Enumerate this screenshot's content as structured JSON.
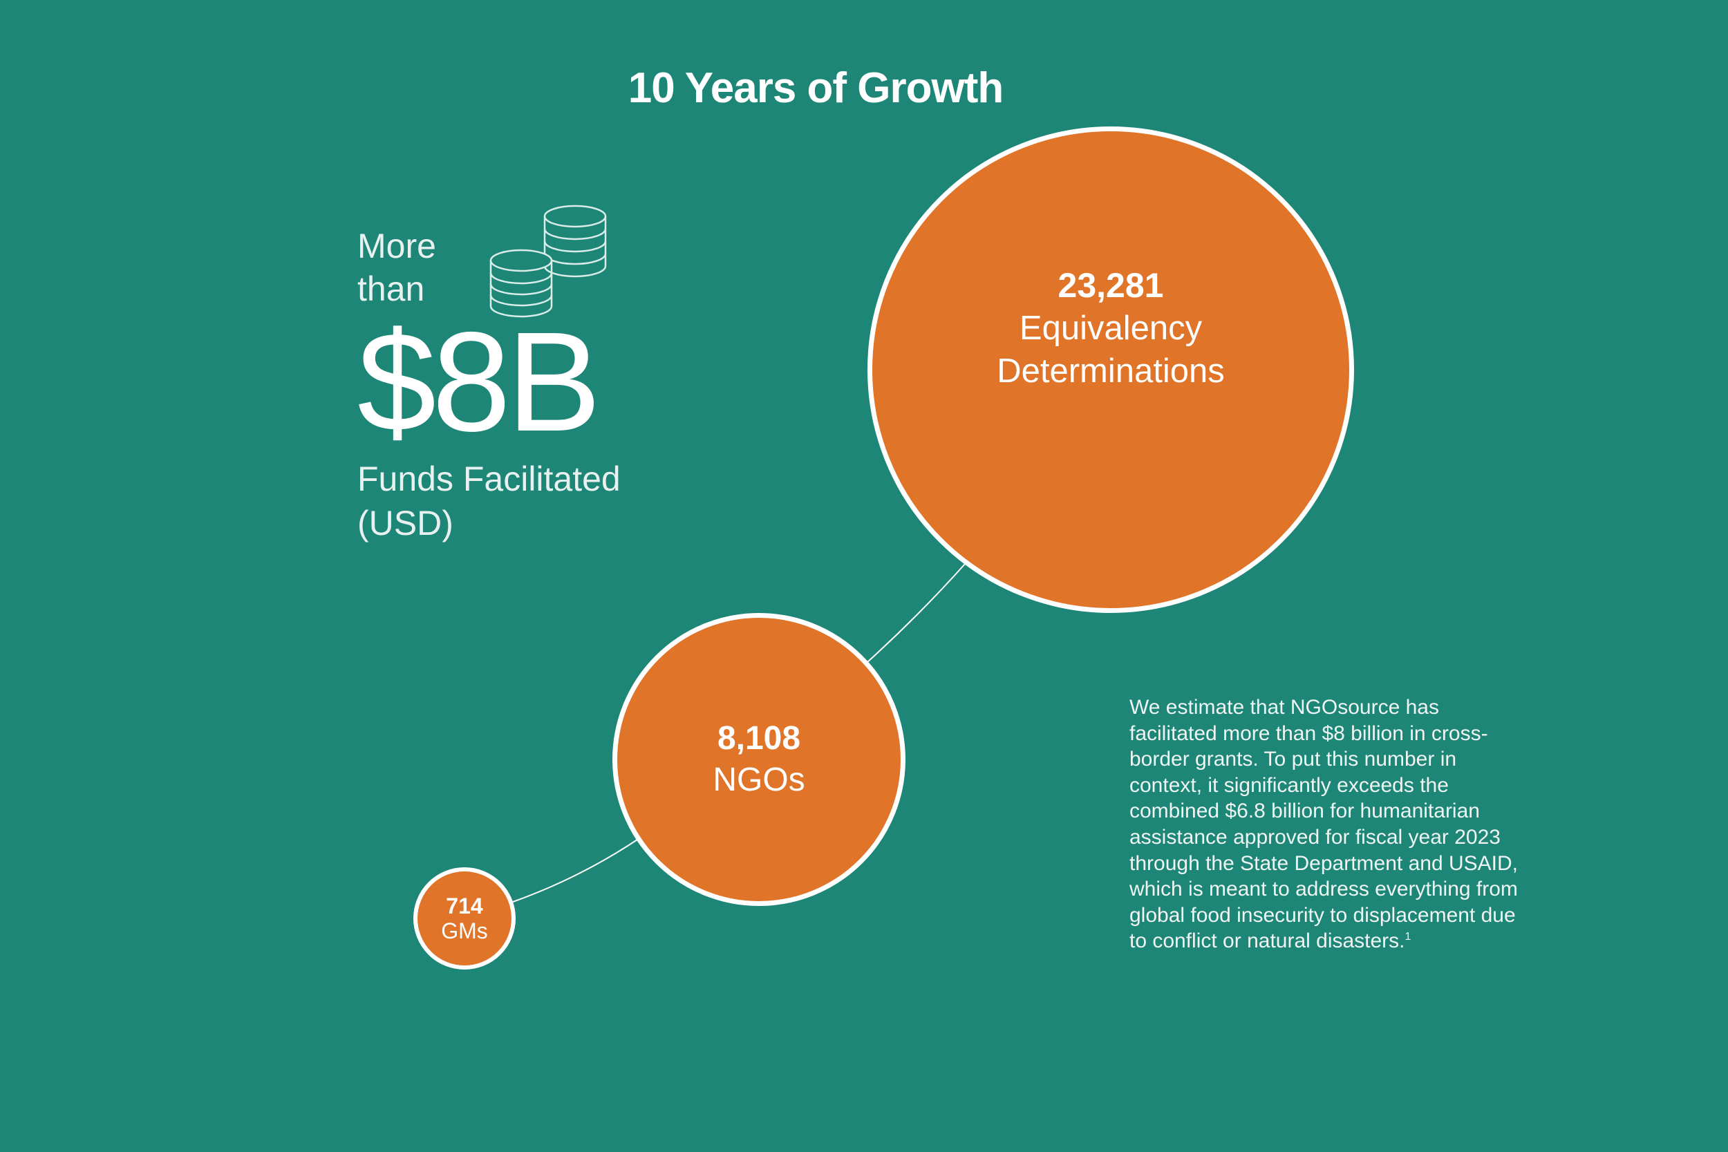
{
  "title": "10 Years of Growth",
  "funds": {
    "prefix": "More than",
    "amount": "$8B",
    "label": "Funds Facilitated (USD)",
    "icon": "coins-icon"
  },
  "bubbles": [
    {
      "value": "23,281",
      "label": "Equivalency Determinations"
    },
    {
      "value": "8,108",
      "label": "NGOs"
    },
    {
      "value": "714",
      "label": "GMs"
    }
  ],
  "description": {
    "text": "We estimate that NGOsource has facilitated more than $8 billion in cross-border grants. To put this number in context, it significantly exceeds the combined $6.8 billion for humanitarian assistance approved for fiscal year 2023 through the State Department and USAID, which is meant to address everything from global food insecurity to displacement due to conflict or natural disasters.",
    "footnote": "1"
  },
  "colors": {
    "background": "#1d8677",
    "bubble": "#e07428",
    "outline": "#ffffff"
  }
}
